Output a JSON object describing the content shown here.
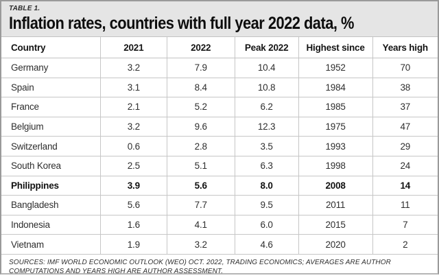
{
  "chart_data": {
    "type": "table",
    "table_label": "TABLE 1.",
    "title": "Inflation rates, countries with full year 2022 data, %",
    "columns": [
      "Country",
      "2021",
      "2022",
      "Peak 2022",
      "Highest since",
      "Years high"
    ],
    "rows": [
      {
        "country": "Germany",
        "values": [
          "3.2",
          "7.9",
          "10.4",
          "1952",
          "70"
        ],
        "highlight": false
      },
      {
        "country": "Spain",
        "values": [
          "3.1",
          "8.4",
          "10.8",
          "1984",
          "38"
        ],
        "highlight": false
      },
      {
        "country": "France",
        "values": [
          "2.1",
          "5.2",
          "6.2",
          "1985",
          "37"
        ],
        "highlight": false
      },
      {
        "country": "Belgium",
        "values": [
          "3.2",
          "9.6",
          "12.3",
          "1975",
          "47"
        ],
        "highlight": false
      },
      {
        "country": "Switzerland",
        "values": [
          "0.6",
          "2.8",
          "3.5",
          "1993",
          "29"
        ],
        "highlight": false
      },
      {
        "country": "South Korea",
        "values": [
          "2.5",
          "5.1",
          "6.3",
          "1998",
          "24"
        ],
        "highlight": false
      },
      {
        "country": "Philippines",
        "values": [
          "3.9",
          "5.6",
          "8.0",
          "2008",
          "14"
        ],
        "highlight": true
      },
      {
        "country": "Bangladesh",
        "values": [
          "5.6",
          "7.7",
          "9.5",
          "2011",
          "11"
        ],
        "highlight": false
      },
      {
        "country": "Indonesia",
        "values": [
          "1.6",
          "4.1",
          "6.0",
          "2015",
          "7"
        ],
        "highlight": false
      },
      {
        "country": "Vietnam",
        "values": [
          "1.9",
          "3.2",
          "4.6",
          "2020",
          "2"
        ],
        "highlight": false
      }
    ],
    "sources": "SOURCES: IMF WORLD ECONOMIC OUTLOOK (WEO) OCT. 2022, TRADING ECONOMICS; AVERAGES ARE AUTHOR COMPUTATIONS AND YEARS HIGH ARE AUTHOR ASSESSMENT.",
    "layout": {
      "legend": "none",
      "grid": "on",
      "highlight_row": "Philippines"
    }
  },
  "colors": {
    "title_band_bg": "#e5e5e5",
    "grid_line": "#c6c6c6",
    "frame_border": "#9a9a9a",
    "text": "#2e2e2e",
    "title_text": "#0d0d0d"
  }
}
